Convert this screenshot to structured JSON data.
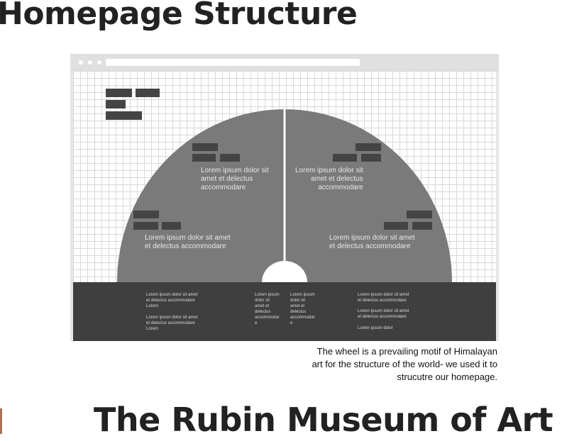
{
  "page": {
    "title": "Homepage Structure",
    "footer_title": "The Rubin Museum of Art",
    "caption": "The wheel is a prevailing motif of Himalayan\nart for the structure of the world- we used it to\nstrucutre our homepage."
  },
  "mockup": {
    "wheel_sections": {
      "top_left": "Lorem ipsum dolor sit\namet et delectus\naccommodare",
      "top_right": "Lorem ipsum dolor sit\namet et delectus\naccommodare",
      "bottom_left": "Lorem ipsum dolor sit amet\net delectus accommodare",
      "bottom_right": "Lorem ipsum dolor sit amet\net delectus accommodare"
    },
    "footer_columns": {
      "col1_a": "Lorem ipsum dolor sit amet\net delectus accommodare\nLorem",
      "col1_b": "Lorem ipsum dolor sit amet\net delectus accommodare\nLorem",
      "col2": "Lorem ipsum\ndolor sit\namet et\ndelectus\naccommodar\ne",
      "col3": "Lorem ipsum\ndolor sit\namet et\ndelectus\naccommodar\ne",
      "col4_a": "Lorem ipsum dolor sit amet\net delectus accommodare",
      "col4_b": "Lorem ipsum dolor sit amet\net delectus accommodare",
      "col4_c": "Lorem ipsum dolor"
    }
  },
  "colors": {
    "wheel_fill": "#7a7a7a",
    "block": "#444444",
    "footer_band": "#3f3f3f"
  }
}
